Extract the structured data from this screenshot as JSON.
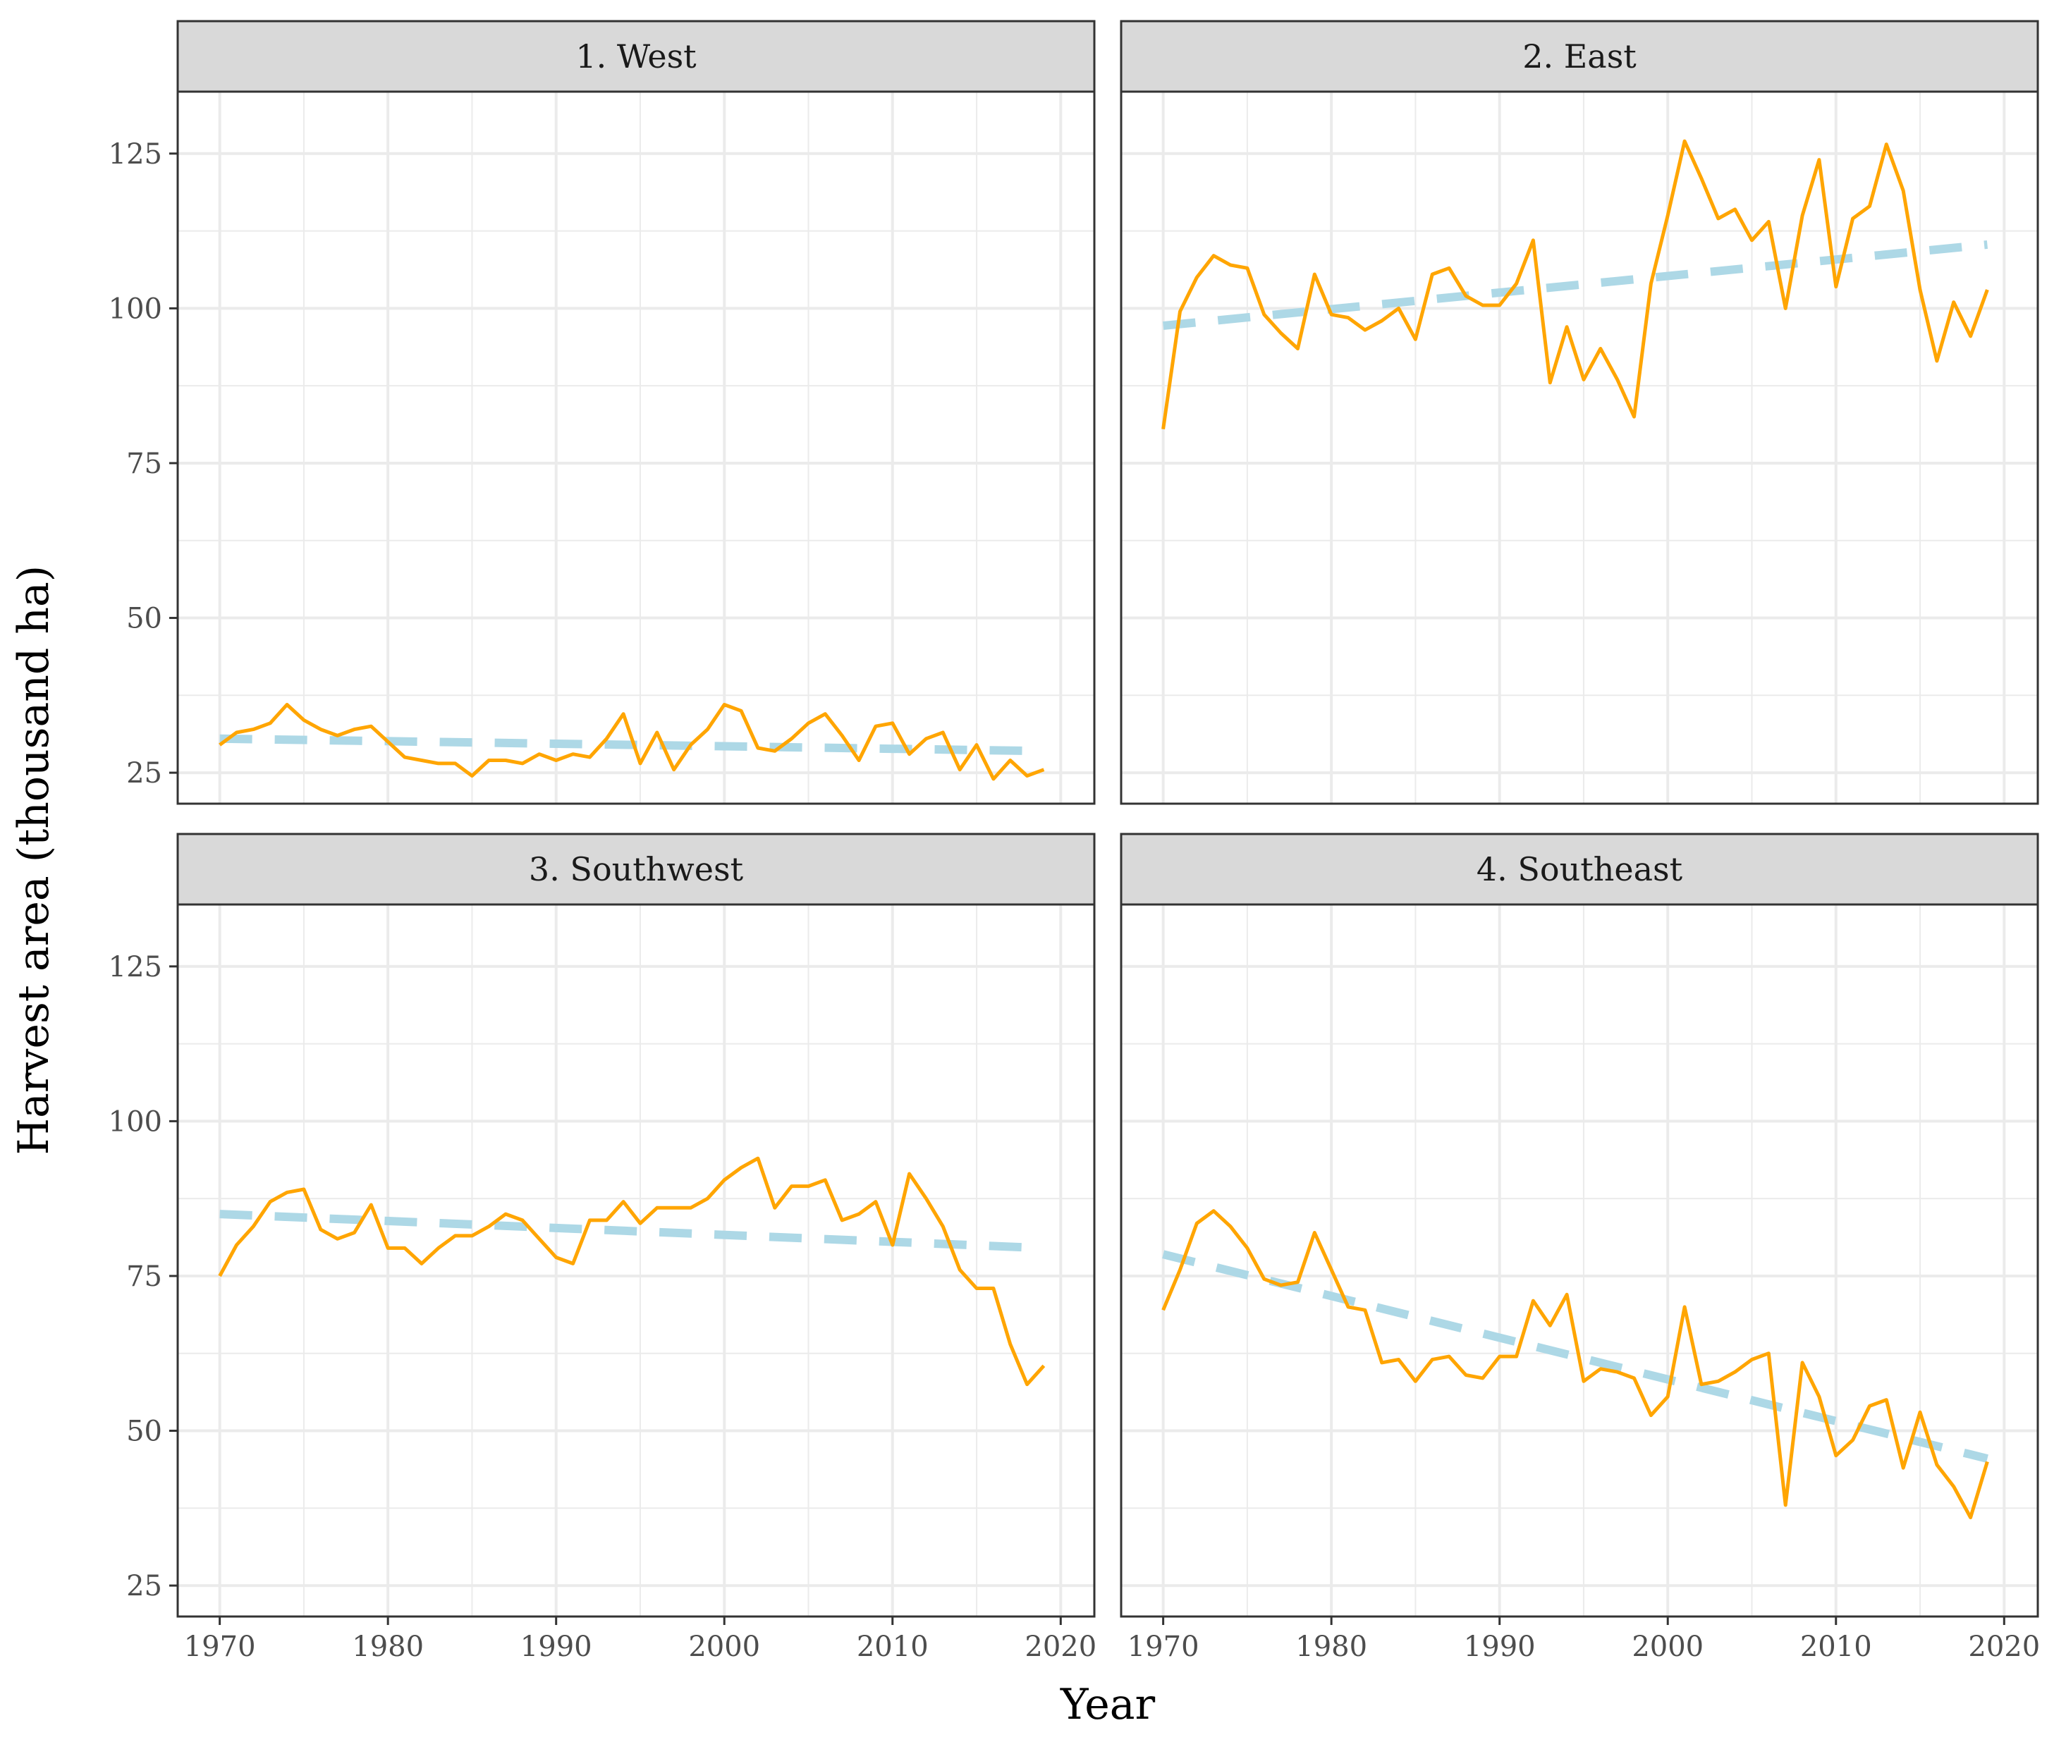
{
  "chart_data": {
    "type": "line",
    "xlabel": "Year",
    "ylabel": "Harvest area (thousand ha)",
    "xlim": [
      1967.5,
      2022
    ],
    "ylim": [
      20,
      135
    ],
    "x_ticks": [
      1970,
      1980,
      1990,
      2000,
      2010,
      2020
    ],
    "y_ticks": [
      25,
      50,
      75,
      100,
      125
    ],
    "grid": true,
    "legend": "none",
    "colors": {
      "observed": "#FFA500",
      "trend": "#ADD8E6",
      "strip": "#D9D9D9",
      "panel_border": "#333333",
      "grid": "#EBEBEB"
    },
    "x": [
      1970,
      1971,
      1972,
      1973,
      1974,
      1975,
      1976,
      1977,
      1978,
      1979,
      1980,
      1981,
      1982,
      1983,
      1984,
      1985,
      1986,
      1987,
      1988,
      1989,
      1990,
      1991,
      1992,
      1993,
      1994,
      1995,
      1996,
      1997,
      1998,
      1999,
      2000,
      2001,
      2002,
      2003,
      2004,
      2005,
      2006,
      2007,
      2008,
      2009,
      2010,
      2011,
      2012,
      2013,
      2014,
      2015,
      2016,
      2017,
      2018,
      2019
    ],
    "panels": [
      {
        "title": "1. West",
        "values": [
          29.5,
          31.5,
          32,
          33,
          36,
          33.5,
          32,
          31,
          32,
          32.5,
          30,
          27.5,
          27,
          26.5,
          26.5,
          24.5,
          27,
          27,
          26.5,
          28,
          27,
          28,
          27.5,
          30.5,
          34.5,
          26.5,
          31.5,
          25.5,
          29.5,
          32,
          36,
          35,
          29,
          28.5,
          30.5,
          33,
          34.5,
          31,
          27,
          32.5,
          33,
          28,
          30.5,
          31.5,
          25.5,
          29.5,
          24,
          27,
          24.5,
          25.5
        ],
        "trend": [
          30.5,
          28.5
        ]
      },
      {
        "title": "2. East",
        "values": [
          80.5,
          99.5,
          105,
          108.5,
          107,
          106.5,
          99,
          96,
          93.5,
          105.5,
          99,
          98.5,
          96.5,
          98,
          100,
          95,
          105.5,
          106.5,
          102,
          100.5,
          100.5,
          104,
          111,
          88,
          97,
          88.5,
          93.5,
          88.5,
          82.5,
          104,
          115,
          127,
          121,
          114.5,
          116,
          111,
          114,
          100,
          115,
          124,
          103.5,
          114.5,
          116.5,
          126.5,
          119,
          103,
          91.5,
          101,
          95.5,
          103
        ],
        "trend": [
          97.2,
          110.3
        ]
      },
      {
        "title": "3. Southwest",
        "values": [
          75,
          80,
          83,
          87,
          88.5,
          89,
          82.5,
          81,
          82,
          86.5,
          79.5,
          79.5,
          77,
          79.5,
          81.5,
          81.5,
          83,
          85,
          84,
          81,
          78,
          77,
          84,
          84,
          87,
          83.5,
          86,
          86,
          86,
          87.5,
          90.5,
          92.5,
          94,
          86,
          89.5,
          89.5,
          90.5,
          84,
          85,
          87,
          80,
          91.5,
          87.5,
          83,
          76,
          73,
          73,
          64,
          57.5,
          60.5
        ],
        "trend": [
          85,
          79.5
        ]
      },
      {
        "title": "4. Southeast",
        "values": [
          69.5,
          76,
          83.5,
          85.5,
          83,
          79.5,
          74.5,
          73.5,
          74,
          82,
          76,
          70,
          69.5,
          61,
          61.5,
          58,
          61.5,
          62,
          59,
          58.5,
          62,
          62,
          71,
          67,
          72,
          58,
          60,
          59.5,
          58.5,
          52.5,
          55.5,
          70,
          57.5,
          58,
          59.5,
          61.5,
          62.5,
          38,
          61,
          55.5,
          46,
          48.5,
          54,
          55,
          44,
          53,
          44.5,
          41,
          36,
          45
        ],
        "trend": [
          78.5,
          45.5
        ]
      }
    ]
  }
}
